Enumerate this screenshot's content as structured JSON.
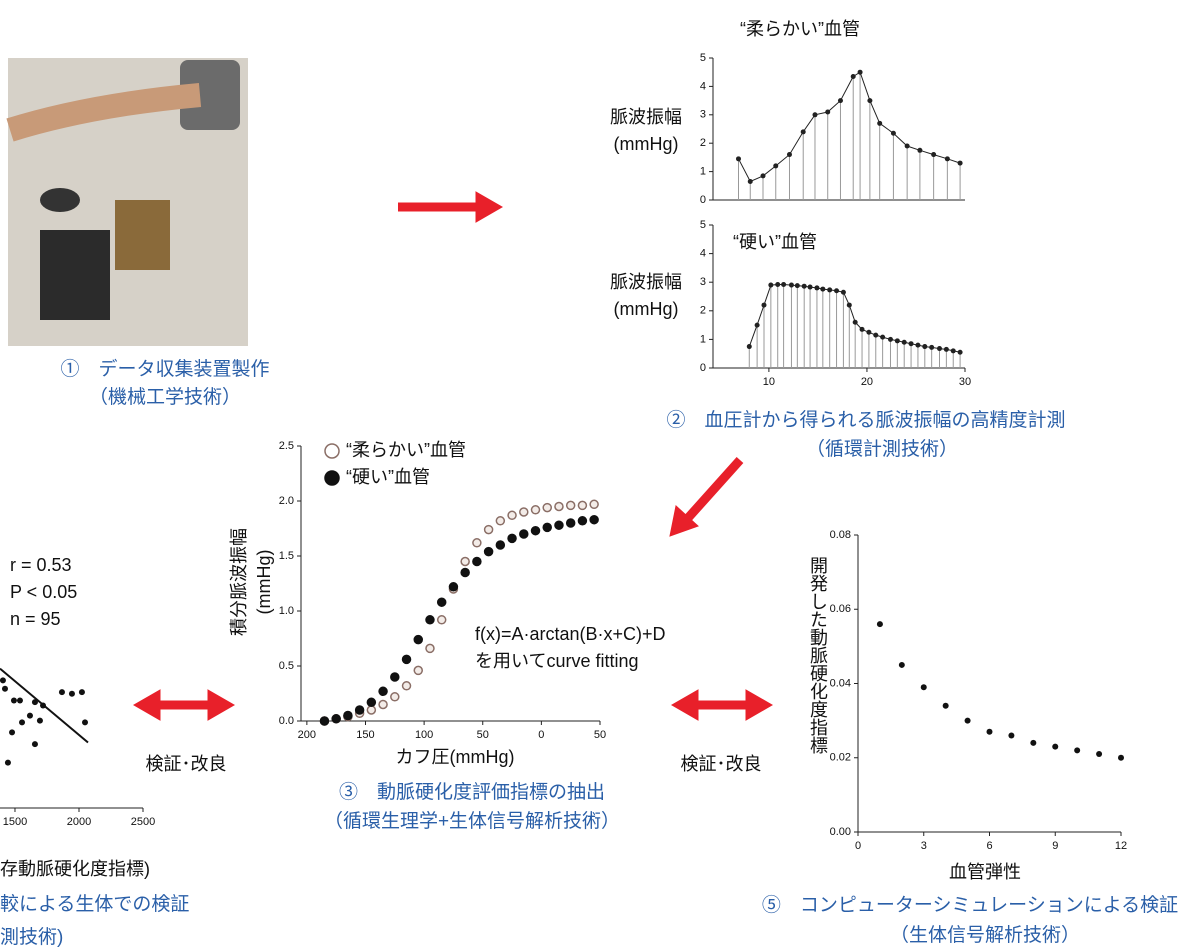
{
  "chart_data": [
    {
      "type": "line",
      "title": "“柔らかい”血管",
      "ylabel": [
        "脈波振幅",
        "(mmHg)"
      ],
      "color": "#222222",
      "stems": true,
      "x": [
        6.9,
        8.1,
        9.4,
        10.7,
        12.1,
        13.5,
        14.7,
        16.0,
        17.3,
        18.6,
        19.3,
        20.3,
        21.3,
        22.7,
        24.1,
        25.4,
        26.8,
        28.2,
        29.5
      ],
      "values": [
        1.45,
        0.65,
        0.85,
        1.2,
        1.6,
        2.4,
        3.0,
        3.1,
        3.5,
        4.35,
        4.5,
        3.5,
        2.7,
        2.35,
        1.9,
        1.75,
        1.6,
        1.45,
        1.3
      ],
      "xlim": [
        4.3,
        30
      ],
      "ylim": [
        0,
        5
      ],
      "yticks": [
        0,
        1,
        2,
        3,
        4,
        5
      ]
    },
    {
      "type": "line",
      "title": "“硬い”血管",
      "ylabel": [
        "脈波振幅",
        "(mmHg)"
      ],
      "color": "#222222",
      "stems": true,
      "x": [
        8.0,
        8.8,
        9.5,
        10.2,
        10.9,
        11.5,
        12.3,
        12.9,
        13.6,
        14.2,
        14.9,
        15.5,
        16.2,
        16.9,
        17.6,
        18.2,
        18.8,
        19.5,
        20.2,
        20.9,
        21.6,
        22.4,
        23.1,
        23.8,
        24.5,
        25.2,
        25.9,
        26.6,
        27.4,
        28.1,
        28.8,
        29.5
      ],
      "values": [
        0.75,
        1.5,
        2.2,
        2.9,
        2.92,
        2.92,
        2.9,
        2.88,
        2.86,
        2.83,
        2.8,
        2.76,
        2.73,
        2.7,
        2.65,
        2.2,
        1.6,
        1.35,
        1.25,
        1.15,
        1.08,
        1.0,
        0.95,
        0.9,
        0.85,
        0.8,
        0.75,
        0.72,
        0.68,
        0.65,
        0.6,
        0.55
      ],
      "xlim": [
        4.3,
        30
      ],
      "ylim": [
        0,
        5
      ],
      "xticks": [
        10,
        20,
        30
      ],
      "yticks": [
        0,
        1,
        2,
        3,
        4,
        5
      ]
    },
    {
      "type": "scatter",
      "xlabel": "カフ圧(mmHg)",
      "ylabel": [
        "積分脈波振幅",
        "(mmHg)"
      ],
      "x": [
        185,
        175,
        165,
        155,
        145,
        135,
        125,
        115,
        105,
        95,
        85,
        75,
        65,
        55,
        45,
        35,
        25,
        15,
        5,
        -5,
        -15,
        -25,
        -35,
        -45
      ],
      "series": [
        {
          "name": "“柔らかい”血管",
          "color": "#8a6e66",
          "marker": "open",
          "values": [
            0.0,
            0.02,
            0.04,
            0.07,
            0.1,
            0.15,
            0.22,
            0.32,
            0.46,
            0.66,
            0.92,
            1.2,
            1.45,
            1.62,
            1.74,
            1.82,
            1.87,
            1.9,
            1.92,
            1.94,
            1.95,
            1.96,
            1.96,
            1.97
          ]
        },
        {
          "name": "“硬い”血管",
          "color": "#111111",
          "marker": "filled",
          "values": [
            0.0,
            0.02,
            0.05,
            0.1,
            0.17,
            0.27,
            0.4,
            0.56,
            0.74,
            0.92,
            1.08,
            1.22,
            1.35,
            1.45,
            1.54,
            1.6,
            1.66,
            1.7,
            1.73,
            1.76,
            1.78,
            1.8,
            1.82,
            1.83
          ]
        }
      ],
      "annotations": [
        "f(x)=A·arctan(B·x+C)+D",
        "を用いてcurve fitting"
      ],
      "xlim": [
        205,
        -50
      ],
      "ylim": [
        0,
        2.5
      ],
      "xticks": [
        200,
        150,
        100,
        50,
        0,
        {
          "value": -50,
          "label": "50"
        }
      ],
      "yticks": [
        {
          "value": 0,
          "label": "0.0"
        },
        0.5,
        {
          "value": 1,
          "label": "1.0"
        },
        1.5,
        {
          "value": 2,
          "label": "2.0"
        },
        2.5
      ]
    },
    {
      "type": "scatter",
      "xlabel": "存動脈硬化度指標)",
      "color": "#111111",
      "x": [
        1406,
        1422,
        1492,
        1539,
        1656,
        1719,
        1617,
        1555,
        1477,
        1656,
        1445,
        1867,
        1945,
        2023,
        2047,
        1695
      ],
      "values": [
        0.76,
        0.71,
        0.64,
        0.64,
        0.63,
        0.61,
        0.55,
        0.51,
        0.45,
        0.38,
        0.27,
        0.69,
        0.68,
        0.69,
        0.51,
        0.52
      ],
      "fit": {
        "x": [
          1383,
          2070
        ],
        "values": [
          0.83,
          0.39
        ]
      },
      "annotations": [
        "r = 0.53",
        "P < 0.05",
        "n = 95"
      ],
      "xlim": [
        1383,
        2500
      ],
      "ylim": [
        0,
        1
      ],
      "xticks": [
        1500,
        2000,
        2500
      ]
    },
    {
      "type": "scatter",
      "xlabel": "血管弾性",
      "ylabel": "開発した動脈硬化度指標",
      "color": "#111111",
      "x": [
        1,
        2,
        3,
        4,
        5,
        6,
        7,
        8,
        9,
        10,
        11,
        12
      ],
      "values": [
        0.056,
        0.045,
        0.039,
        0.034,
        0.03,
        0.027,
        0.026,
        0.024,
        0.023,
        0.022,
        0.021,
        0.02
      ],
      "xlim": [
        0,
        12
      ],
      "ylim": [
        0,
        0.08
      ],
      "xticks": [
        0,
        3,
        6,
        9,
        12
      ],
      "yticks": [
        {
          "value": 0,
          "label": "0.00"
        },
        {
          "value": 0.02,
          "label": "0.02"
        },
        {
          "value": 0.04,
          "label": "0.04"
        },
        {
          "value": 0.06,
          "label": "0.06"
        },
        {
          "value": 0.08,
          "label": "0.08"
        }
      ]
    }
  ],
  "captions": {
    "photo": [
      "①　データ収集装置製作",
      "（機械工学技術）"
    ],
    "measure": [
      "②　血圧計から得られる脈波振幅の高精度計測",
      "（循環計測技術）"
    ],
    "index": [
      "③　動脈硬化度評価指標の抽出",
      "（循環生理学+生体信号解析技術）"
    ],
    "simulation": [
      "⑤　コンピューターシミュレーションによる検証",
      "（生体信号解析技術）"
    ],
    "clinical": [
      "較による生体での検証",
      "測技術)"
    ],
    "verify": [
      "検証･改良",
      "検証･改良"
    ]
  }
}
